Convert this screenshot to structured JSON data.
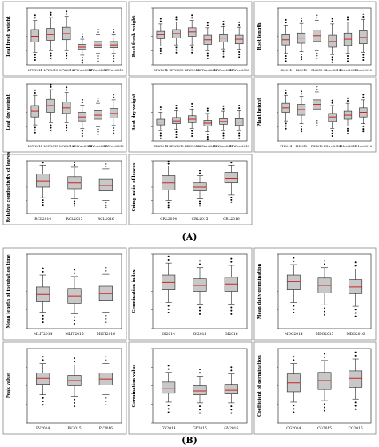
{
  "figure": {
    "panel_labels": [
      "(A)",
      "(B)"
    ]
  },
  "chart_data": [
    {
      "type": "box",
      "ylabel": "Leaf fresh weight",
      "categories": [
        "LFW2014",
        "LFW2015",
        "LFW2016",
        "LFWwet2014",
        "LFWwet2015",
        "LFWwet2016"
      ],
      "ylim": [
        0,
        1
      ],
      "boxes": [
        [
          0.22,
          0.4,
          0.5,
          0.62,
          0.78
        ],
        [
          0.25,
          0.43,
          0.53,
          0.64,
          0.83
        ],
        [
          0.25,
          0.44,
          0.55,
          0.66,
          0.85
        ],
        [
          0.17,
          0.27,
          0.31,
          0.36,
          0.45
        ],
        [
          0.2,
          0.3,
          0.35,
          0.41,
          0.53
        ],
        [
          0.2,
          0.3,
          0.35,
          0.41,
          0.53
        ]
      ]
    },
    {
      "type": "box",
      "ylabel": "Root fresh weight",
      "categories": [
        "RFW2014",
        "RFW2015",
        "RFW2016",
        "RFWwet2014",
        "RFWwet2015",
        "RFWwet2016"
      ],
      "ylim": [
        0,
        1
      ],
      "boxes": [
        [
          0.33,
          0.46,
          0.53,
          0.59,
          0.72
        ],
        [
          0.35,
          0.47,
          0.55,
          0.62,
          0.75
        ],
        [
          0.35,
          0.5,
          0.58,
          0.65,
          0.78
        ],
        [
          0.25,
          0.36,
          0.44,
          0.52,
          0.65
        ],
        [
          0.28,
          0.4,
          0.47,
          0.53,
          0.67
        ],
        [
          0.27,
          0.37,
          0.45,
          0.52,
          0.66
        ]
      ]
    },
    {
      "type": "box",
      "ylabel": "Root length",
      "categories": [
        "RL2014",
        "RL2015",
        "RL2016",
        "RLwet2014",
        "RLwet2015",
        "RLwet2016"
      ],
      "ylim": [
        0,
        1
      ],
      "boxes": [
        [
          0.2,
          0.35,
          0.44,
          0.53,
          0.7
        ],
        [
          0.23,
          0.38,
          0.47,
          0.56,
          0.73
        ],
        [
          0.25,
          0.41,
          0.51,
          0.61,
          0.78
        ],
        [
          0.18,
          0.31,
          0.41,
          0.52,
          0.72
        ],
        [
          0.2,
          0.34,
          0.45,
          0.56,
          0.75
        ],
        [
          0.22,
          0.37,
          0.48,
          0.6,
          0.8
        ]
      ]
    },
    {
      "type": "box",
      "ylabel": "Leaf dry weight",
      "categories": [
        "LDW2014",
        "LDW2015",
        "LDW2016",
        "LDWwet2014",
        "LDWwet2015",
        "LDWwet2016"
      ],
      "ylim": [
        0,
        1
      ],
      "boxes": [
        [
          0.28,
          0.42,
          0.52,
          0.62,
          0.8
        ],
        [
          0.32,
          0.5,
          0.62,
          0.73,
          0.9
        ],
        [
          0.32,
          0.48,
          0.58,
          0.68,
          0.85
        ],
        [
          0.22,
          0.35,
          0.42,
          0.5,
          0.63
        ],
        [
          0.25,
          0.38,
          0.45,
          0.53,
          0.66
        ],
        [
          0.27,
          0.4,
          0.48,
          0.57,
          0.72
        ]
      ]
    },
    {
      "type": "box",
      "ylabel": "Root dry weight",
      "categories": [
        "RDW2014",
        "RDW2015",
        "RDW2016",
        "RDWwet2014",
        "RDWwet2015",
        "RDWwet2016"
      ],
      "ylim": [
        0,
        1
      ],
      "boxes": [
        [
          0.18,
          0.28,
          0.33,
          0.38,
          0.5
        ],
        [
          0.2,
          0.3,
          0.35,
          0.41,
          0.53
        ],
        [
          0.22,
          0.32,
          0.38,
          0.44,
          0.56
        ],
        [
          0.16,
          0.26,
          0.31,
          0.36,
          0.48
        ],
        [
          0.18,
          0.29,
          0.34,
          0.39,
          0.52
        ],
        [
          0.18,
          0.27,
          0.33,
          0.39,
          0.53
        ]
      ]
    },
    {
      "type": "box",
      "ylabel": "Plant height",
      "categories": [
        "PH2014",
        "PH2015",
        "PH2016",
        "PHwet2014",
        "PHwet2015",
        "PHwet2016"
      ],
      "ylim": [
        0,
        1
      ],
      "boxes": [
        [
          0.35,
          0.5,
          0.58,
          0.66,
          0.8
        ],
        [
          0.3,
          0.45,
          0.55,
          0.64,
          0.78
        ],
        [
          0.4,
          0.56,
          0.64,
          0.72,
          0.86
        ],
        [
          0.22,
          0.34,
          0.42,
          0.48,
          0.62
        ],
        [
          0.26,
          0.38,
          0.45,
          0.52,
          0.66
        ],
        [
          0.3,
          0.42,
          0.5,
          0.58,
          0.72
        ]
      ]
    },
    {
      "type": "box",
      "ylabel": "Relative conductivity of leaves",
      "categories": [
        "RCL2014",
        "RCL2015",
        "RCL2016"
      ],
      "ylim": [
        0,
        1
      ],
      "boxes": [
        [
          0.3,
          0.5,
          0.62,
          0.75,
          0.92
        ],
        [
          0.28,
          0.47,
          0.58,
          0.7,
          0.88
        ],
        [
          0.25,
          0.43,
          0.53,
          0.65,
          0.85
        ]
      ]
    },
    {
      "type": "box",
      "ylabel": "Crimp ratio of leaves",
      "categories": [
        "CRL2014",
        "CRL2015",
        "CRL2016"
      ],
      "ylim": [
        0,
        1
      ],
      "boxes": [
        [
          0.25,
          0.45,
          0.58,
          0.72,
          0.9
        ],
        [
          0.28,
          0.43,
          0.5,
          0.58,
          0.72
        ],
        [
          0.35,
          0.58,
          0.66,
          0.78,
          0.92
        ]
      ]
    },
    {
      "type": "box",
      "ylabel": "Mean length of incubation time",
      "categories": [
        "MLIT2014",
        "MLIT2015",
        "MLIT2016"
      ],
      "ylim": [
        0,
        1
      ],
      "boxes": [
        [
          0.22,
          0.36,
          0.46,
          0.56,
          0.72
        ],
        [
          0.2,
          0.34,
          0.44,
          0.54,
          0.7
        ],
        [
          0.22,
          0.38,
          0.47,
          0.57,
          0.73
        ]
      ]
    },
    {
      "type": "box",
      "ylabel": "Germination index",
      "categories": [
        "GI2014",
        "GI2015",
        "GI2016"
      ],
      "ylim": [
        0,
        1
      ],
      "boxes": [
        [
          0.35,
          0.52,
          0.62,
          0.72,
          0.88
        ],
        [
          0.33,
          0.5,
          0.58,
          0.67,
          0.82
        ],
        [
          0.33,
          0.5,
          0.6,
          0.69,
          0.85
        ]
      ]
    },
    {
      "type": "box",
      "ylabel": "Mean daily germination",
      "categories": [
        "MDG2014",
        "MDG2015",
        "MDG2016"
      ],
      "ylim": [
        0,
        1
      ],
      "boxes": [
        [
          0.35,
          0.52,
          0.63,
          0.72,
          0.86
        ],
        [
          0.32,
          0.48,
          0.58,
          0.68,
          0.82
        ],
        [
          0.3,
          0.47,
          0.56,
          0.66,
          0.8
        ]
      ]
    },
    {
      "type": "box",
      "ylabel": "Peak value",
      "categories": [
        "PV2014",
        "PV2015",
        "PV2016"
      ],
      "ylim": [
        0,
        1
      ],
      "boxes": [
        [
          0.38,
          0.52,
          0.6,
          0.67,
          0.8
        ],
        [
          0.36,
          0.5,
          0.57,
          0.64,
          0.78
        ],
        [
          0.38,
          0.51,
          0.59,
          0.67,
          0.8
        ]
      ]
    },
    {
      "type": "box",
      "ylabel": "Germination value",
      "categories": [
        "GV2014",
        "GV2015",
        "GV2016"
      ],
      "ylim": [
        0,
        1
      ],
      "boxes": [
        [
          0.28,
          0.4,
          0.46,
          0.55,
          0.68
        ],
        [
          0.27,
          0.38,
          0.43,
          0.5,
          0.63
        ],
        [
          0.27,
          0.39,
          0.44,
          0.52,
          0.66
        ]
      ]
    },
    {
      "type": "box",
      "ylabel": "Coefficient of germination",
      "categories": [
        "CG2014",
        "CG2015",
        "CG2016"
      ],
      "ylim": [
        0,
        1
      ],
      "boxes": [
        [
          0.28,
          0.42,
          0.54,
          0.66,
          0.8
        ],
        [
          0.3,
          0.45,
          0.57,
          0.68,
          0.84
        ],
        [
          0.32,
          0.48,
          0.6,
          0.7,
          0.86
        ]
      ]
    }
  ]
}
